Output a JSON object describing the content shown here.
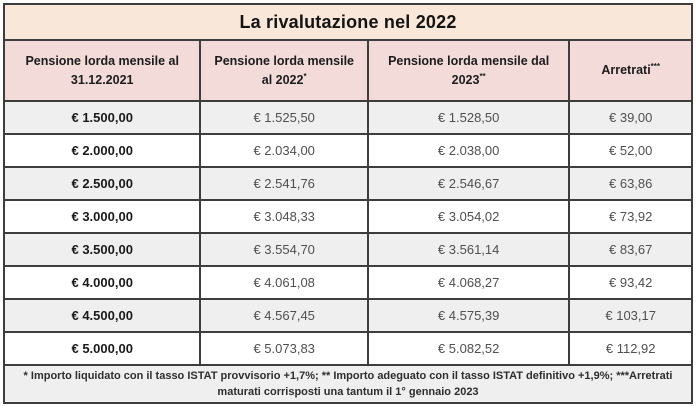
{
  "chart_data": {
    "type": "table",
    "title": "La rivalutazione nel 2022",
    "columns": [
      "Pensione lorda mensile  al\n31.12.2021",
      "Pensione lorda mensile\nal 2022*",
      "Pensione lorda mensile dal\n2023**",
      "Arretrati***"
    ],
    "rows": [
      [
        "€ 1.500,00",
        "€ 1.525,50",
        "€ 1.528,50",
        "€ 39,00"
      ],
      [
        "€ 2.000,00",
        "€ 2.034,00",
        "€ 2.038,00",
        "€ 52,00"
      ],
      [
        "€ 2.500,00",
        "€ 2.541,76",
        "€ 2.546,67",
        "€ 63,86"
      ],
      [
        "€ 3.000,00",
        "€ 3.048,33",
        "€ 3.054,02",
        "€ 73,92"
      ],
      [
        "€ 3.500,00",
        "€ 3.554,70",
        "€ 3.561,14",
        "€ 83,67"
      ],
      [
        "€ 4.000,00",
        "€ 4.061,08",
        "€ 4.068,27",
        "€ 93,42"
      ],
      [
        "€ 4.500,00",
        "€ 4.567,45",
        "€ 4.575,39",
        "€ 103,17"
      ],
      [
        "€ 5.000,00",
        "€ 5.073,83",
        "€ 5.082,52",
        "€ 112,92"
      ]
    ],
    "footnote": "* Importo liquidato con il tasso ISTAT provvisorio +1,7%; ** Importo adeguato con il tasso ISTAT definitivo +1,9%; ***Arretrati\nmaturati corrisposti una tantum il 1° gennaio 2023"
  },
  "colors": {
    "title_bg": "#f9e7da",
    "header_bg": "#f2dbd9",
    "row_alt_bg": "#efefef",
    "row_bg": "#ffffff",
    "footnote_bg": "#efefef",
    "border": "#3d3d3d",
    "text_primary": "#1a1a1a",
    "text_value": "#4f4f4f"
  }
}
